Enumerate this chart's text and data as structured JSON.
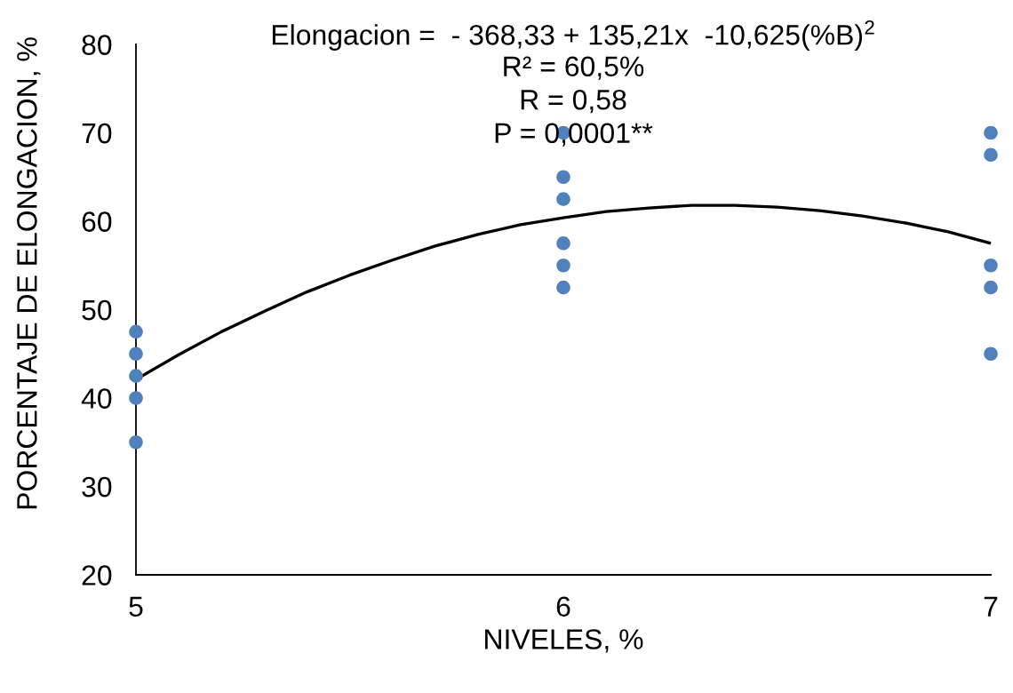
{
  "chart_data": {
    "type": "scatter",
    "xlabel": "NIVELES, %",
    "ylabel": "PORCENTAJE DE ELONGACION, %",
    "xlim": [
      5,
      7
    ],
    "xticks": [
      5,
      6,
      7
    ],
    "ylim": [
      20,
      80
    ],
    "yticks": [
      20,
      30,
      40,
      50,
      60,
      70,
      80
    ],
    "grid": false,
    "series": [
      {
        "color": "#4f81bd",
        "marker": "circle",
        "x": [
          5,
          5,
          5,
          5,
          5,
          6,
          6,
          6,
          6,
          6,
          6,
          7,
          7,
          7,
          7,
          7
        ],
        "values": [
          47.5,
          45,
          42.5,
          40,
          35,
          70,
          65,
          62.5,
          57.5,
          55,
          52.5,
          70,
          67.5,
          55,
          52.5,
          45
        ]
      },
      {
        "type": "line",
        "color": "#000000",
        "marker": "none",
        "line_style": "solid",
        "x": [
          5.0,
          5.1,
          5.2,
          5.3,
          5.4,
          5.5,
          5.6,
          5.7,
          5.8,
          5.9,
          6.0,
          6.1,
          6.2,
          6.3,
          6.4,
          6.5,
          6.6,
          6.7,
          6.8,
          6.9,
          7.0
        ],
        "values": [
          42.1,
          44.9,
          47.5,
          49.8,
          52.0,
          53.9,
          55.6,
          57.2,
          58.5,
          59.6,
          60.4,
          61.1,
          61.5,
          61.8,
          61.8,
          61.6,
          61.2,
          60.6,
          59.8,
          58.8,
          57.5
        ]
      }
    ],
    "annotations": [
      "Elongacion =  - 368,33 + 135,21x  -10,625(%B)$^{2}$",
      "R² = 60,5%",
      "R = 0,58",
      "P = 0,0001**"
    ]
  }
}
